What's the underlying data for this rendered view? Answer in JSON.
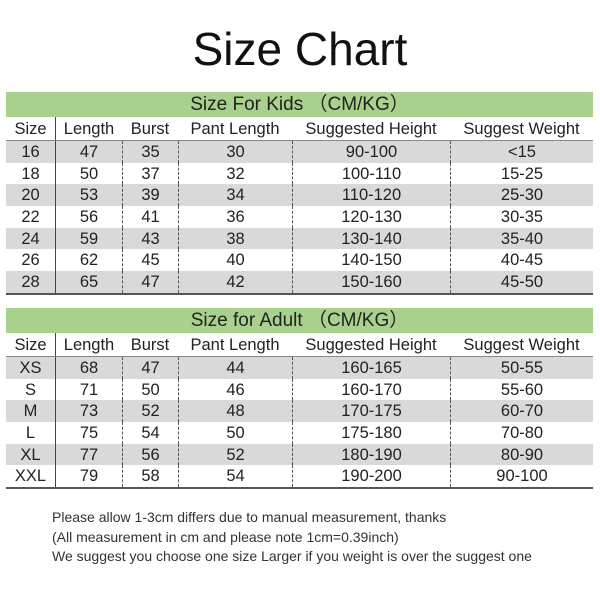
{
  "title": "Size Chart",
  "columns": [
    "Size",
    "Length",
    "Burst",
    "Pant Length",
    "Suggested Height",
    "Suggest Weight"
  ],
  "kids": {
    "heading": "Size For Kids （CM/KG）",
    "rows": [
      [
        "16",
        "47",
        "35",
        "30",
        "90-100",
        "<15"
      ],
      [
        "18",
        "50",
        "37",
        "32",
        "100-110",
        "15-25"
      ],
      [
        "20",
        "53",
        "39",
        "34",
        "110-120",
        "25-30"
      ],
      [
        "22",
        "56",
        "41",
        "36",
        "120-130",
        "30-35"
      ],
      [
        "24",
        "59",
        "43",
        "38",
        "130-140",
        "35-40"
      ],
      [
        "26",
        "62",
        "45",
        "40",
        "140-150",
        "40-45"
      ],
      [
        "28",
        "65",
        "47",
        "42",
        "150-160",
        "45-50"
      ]
    ]
  },
  "adult": {
    "heading": "Size for Adult （CM/KG）",
    "rows": [
      [
        "XS",
        "68",
        "47",
        "44",
        "160-165",
        "50-55"
      ],
      [
        "S",
        "71",
        "50",
        "46",
        "160-170",
        "55-60"
      ],
      [
        "M",
        "73",
        "52",
        "48",
        "170-175",
        "60-70"
      ],
      [
        "L",
        "75",
        "54",
        "50",
        "175-180",
        "70-80"
      ],
      [
        "XL",
        "77",
        "56",
        "52",
        "180-190",
        "80-90"
      ],
      [
        "XXL",
        "79",
        "58",
        "54",
        "190-200",
        "90-100"
      ]
    ]
  },
  "notes": [
    "Please allow 1-3cm differs due to manual measurement, thanks",
    "(All measurement in cm and please note 1cm=0.39inch)",
    "We suggest you choose one size Larger if you weight is over the suggest one"
  ],
  "colors": {
    "band": "#a9d18e",
    "alt_row": "#d9d9d9"
  }
}
